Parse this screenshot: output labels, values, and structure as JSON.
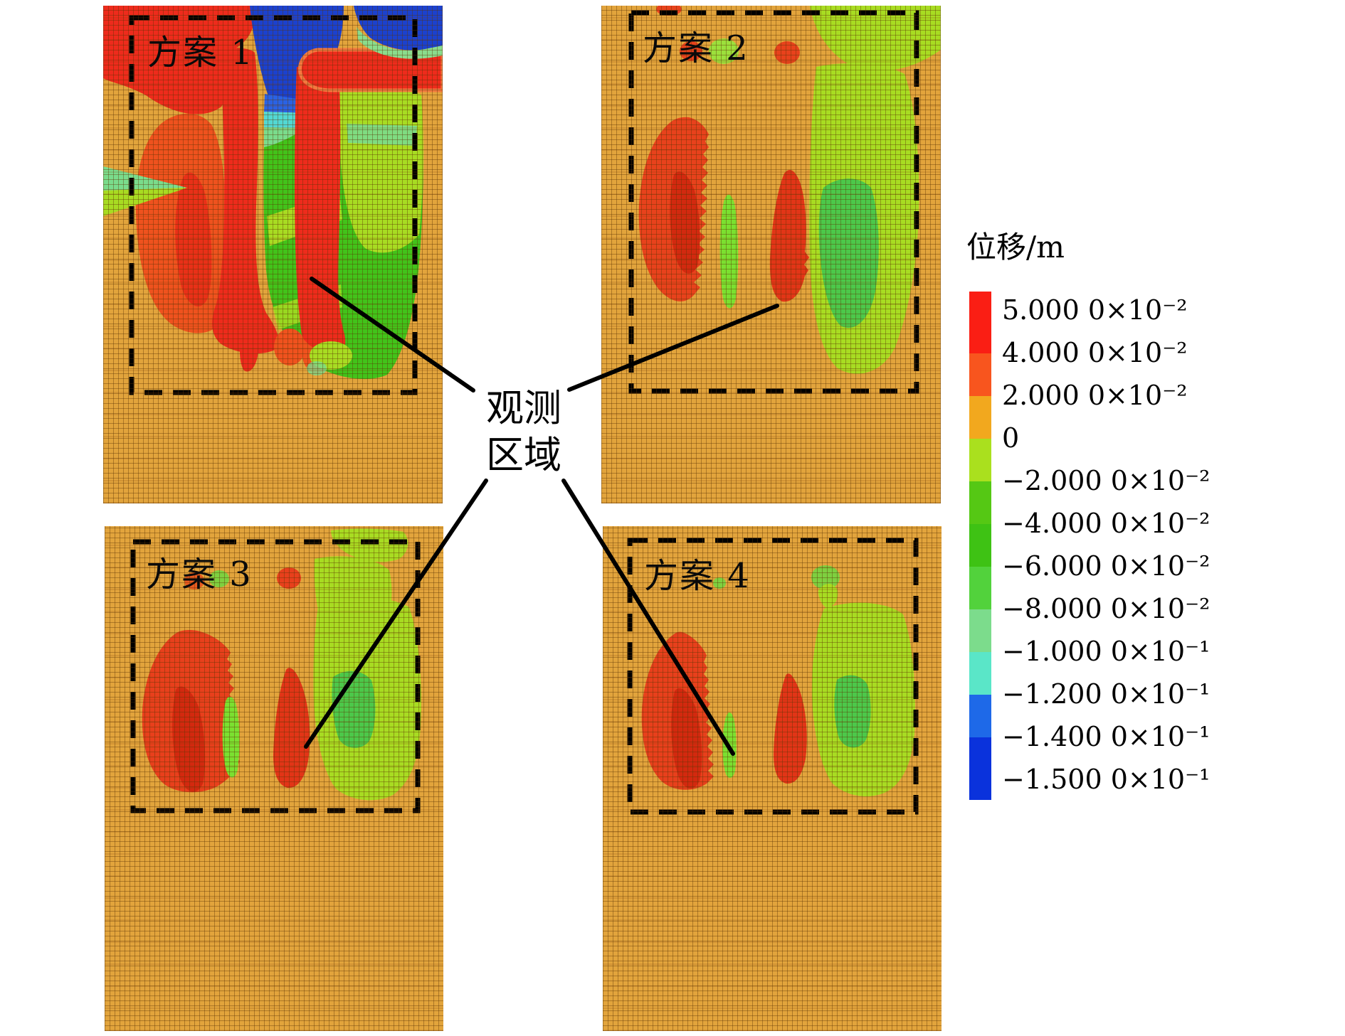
{
  "figure": {
    "panels": [
      {
        "label": "方案 1"
      },
      {
        "label": "方案 2"
      },
      {
        "label": "方案 3"
      },
      {
        "label": "方案 4"
      }
    ],
    "observation_label": {
      "line1": "观测",
      "line2": "区域"
    },
    "legend": {
      "title": "位移/m",
      "entries": [
        "5.000 0×10⁻²",
        "4.000 0×10⁻²",
        "2.000 0×10⁻²",
        "0",
        "−2.000 0×10⁻²",
        "−4.000 0×10⁻²",
        "−6.000 0×10⁻²",
        "−8.000 0×10⁻²",
        "−1.000 0×10⁻¹",
        "−1.200 0×10⁻¹",
        "−1.400 0×10⁻¹",
        "−1.500 0×10⁻¹"
      ],
      "segment_colors": [
        "#FA1E14",
        "#F8551E",
        "#F2A81E",
        "#AAE01E",
        "#55C814",
        "#3EC214",
        "#52D23C",
        "#7CDC8C",
        "#5AE6C8",
        "#1E69E8",
        "#0A32DC"
      ]
    }
  },
  "chart_data": {
    "type": "heatmap",
    "title": "位移/m",
    "subplots": [
      "方案 1",
      "方案 2",
      "方案 3",
      "方案 4"
    ],
    "annotation": "观测区域",
    "legend_position": "right",
    "units": "m",
    "color_bins": [
      {
        "range": [
          0.04,
          0.05
        ],
        "color": "#FA1E14"
      },
      {
        "range": [
          0.02,
          0.04
        ],
        "color": "#F8551E"
      },
      {
        "range": [
          0.0,
          0.02
        ],
        "color": "#F2A81E"
      },
      {
        "range": [
          -0.02,
          0.0
        ],
        "color": "#AAE01E"
      },
      {
        "range": [
          -0.04,
          -0.02
        ],
        "color": "#55C814"
      },
      {
        "range": [
          -0.06,
          -0.04
        ],
        "color": "#3EC214"
      },
      {
        "range": [
          -0.08,
          -0.06
        ],
        "color": "#52D23C"
      },
      {
        "range": [
          -0.1,
          -0.08
        ],
        "color": "#7CDC8C"
      },
      {
        "range": [
          -0.12,
          -0.1
        ],
        "color": "#5AE6C8"
      },
      {
        "range": [
          -0.14,
          -0.12
        ],
        "color": "#1E69E8"
      },
      {
        "range": [
          -0.15,
          -0.14
        ],
        "color": "#0A32DC"
      }
    ],
    "notes": "Four finite-element vertical-displacement contour plots (schemes 1-4); dashed rectangles mark the observation region; scheme 1 shows large positive (red) and negative (blue) displacement zones, schemes 2-4 show two red lobes and a green lobe inside the observation region."
  }
}
